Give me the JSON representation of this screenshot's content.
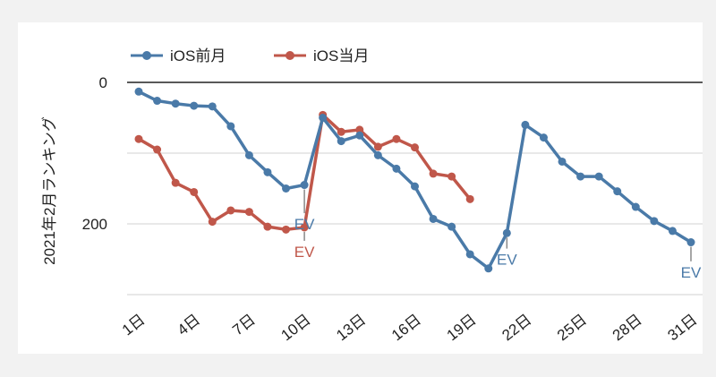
{
  "chart_data": {
    "type": "line",
    "title": "",
    "xlabel": "",
    "ylabel": "2021年2月ランキング",
    "y_reversed": true,
    "ylim": [
      0,
      300
    ],
    "y_ticks": [
      0,
      200
    ],
    "gridlines": [
      0,
      100,
      200,
      300
    ],
    "x_ticks": [
      1,
      4,
      7,
      10,
      13,
      16,
      19,
      22,
      25,
      28,
      31
    ],
    "x_tick_labels": [
      "1日",
      "4日",
      "7日",
      "10日",
      "13日",
      "16日",
      "19日",
      "22日",
      "25日",
      "28日",
      "31日"
    ],
    "legend_position": "top-left",
    "series": [
      {
        "name": "iOS前月",
        "color": "#4a7aa8",
        "x": [
          1,
          2,
          3,
          4,
          5,
          6,
          7,
          8,
          9,
          10,
          11,
          12,
          13,
          14,
          15,
          16,
          17,
          18,
          19,
          20,
          21,
          22,
          23,
          24,
          25,
          26,
          27,
          28,
          29,
          30,
          31
        ],
        "values": [
          13,
          26,
          30,
          33,
          34,
          62,
          103,
          127,
          150,
          145,
          50,
          83,
          75,
          103,
          122,
          147,
          193,
          204,
          243,
          263,
          213,
          60,
          78,
          112,
          133,
          133,
          154,
          176,
          196,
          210,
          226
        ]
      },
      {
        "name": "iOS当月",
        "color": "#c0574a",
        "x": [
          1,
          2,
          3,
          4,
          5,
          6,
          7,
          8,
          9,
          10,
          11,
          12,
          13,
          14,
          15,
          16,
          17,
          18,
          19
        ],
        "values": [
          80,
          95,
          142,
          155,
          197,
          181,
          183,
          204,
          208,
          205,
          46,
          70,
          67,
          91,
          80,
          92,
          129,
          133,
          165
        ]
      }
    ],
    "annotations": [
      {
        "text": "EV",
        "x": 10,
        "series": "iOS前月",
        "y": 145,
        "label_y": 190,
        "placement": "below"
      },
      {
        "text": "EV",
        "x": 10,
        "series": "iOS当月",
        "y": 205,
        "label_y": 229,
        "placement": "below"
      },
      {
        "text": "EV",
        "x": 21,
        "series": "iOS前月",
        "y": 213,
        "label_y": 240,
        "placement": "below"
      },
      {
        "text": "EV",
        "x": 31,
        "series": "iOS前月",
        "y": 226,
        "label_y": 258,
        "placement": "below"
      }
    ]
  }
}
